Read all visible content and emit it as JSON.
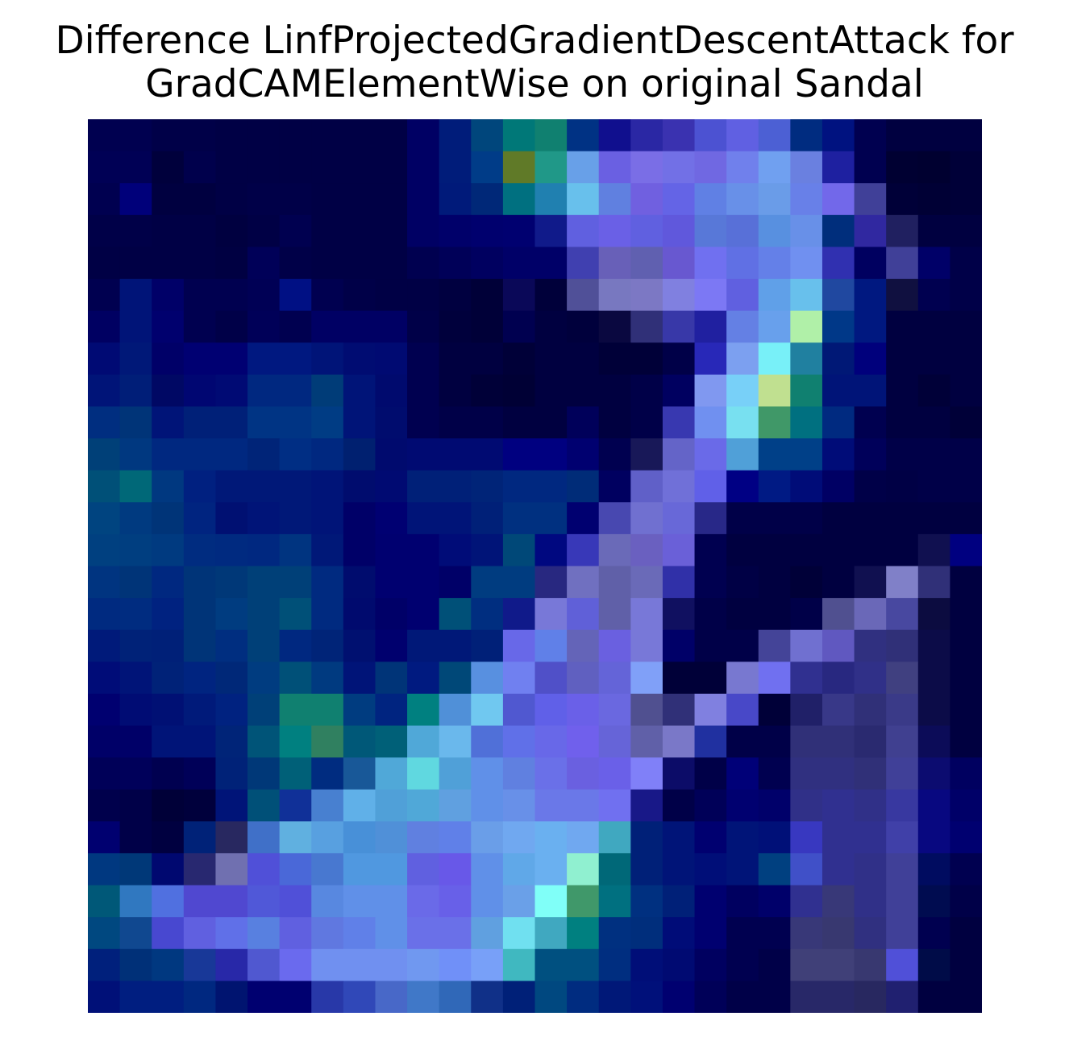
{
  "chart_data": {
    "type": "heatmap",
    "title_lines": [
      "Difference LinfProjectedGradientDescentAttack for",
      "GradCAMElementWise on original Sandal"
    ],
    "xlabel": "",
    "ylabel": "",
    "axes_visible": false,
    "grid": false,
    "rows": 28,
    "cols": 28,
    "cells": [
      [
        "#000050",
        "#000050",
        "#000048",
        "#000048",
        "#000045",
        "#000045",
        "#000045",
        "#000045",
        "#000045",
        "#000045",
        "#000064",
        "#001c7a",
        "#00467c",
        "#007878",
        "#108070",
        "#003284",
        "#100f8e",
        "#2a27a4",
        "#3a32b0",
        "#4c52d2",
        "#6060e2",
        "#4c60d4",
        "#002c80",
        "#001280",
        "#000050",
        "#000040",
        "#000040",
        "#000040"
      ],
      [
        "#000055",
        "#000055",
        "#00003c",
        "#00004c",
        "#000045",
        "#000045",
        "#000045",
        "#000045",
        "#000045",
        "#000045",
        "#000064",
        "#001c7a",
        "#003c88",
        "#607a28",
        "#209888",
        "#68a0e8",
        "#6a60e2",
        "#7a6ee6",
        "#7270e6",
        "#7068e2",
        "#7080ec",
        "#70a0f0",
        "#6a80e0",
        "#1e20a0",
        "#000050",
        "#000032",
        "#000030",
        "#000038"
      ],
      [
        "#000050",
        "#00007a",
        "#000040",
        "#000040",
        "#000045",
        "#000048",
        "#000048",
        "#000045",
        "#000045",
        "#000045",
        "#000064",
        "#001a7a",
        "#002878",
        "#007080",
        "#2080b0",
        "#68c0ec",
        "#6080e0",
        "#7060e0",
        "#6464e6",
        "#6080e4",
        "#6890e8",
        "#6a9ce8",
        "#6880e8",
        "#7268ea",
        "#404098",
        "#000038",
        "#000035",
        "#000038"
      ],
      [
        "#000048",
        "#000048",
        "#000045",
        "#000045",
        "#000040",
        "#000045",
        "#000050",
        "#000045",
        "#000045",
        "#000045",
        "#000064",
        "#00006a",
        "#00006e",
        "#000070",
        "#101a8a",
        "#6060e0",
        "#6a60e6",
        "#6060e0",
        "#6058dc",
        "#5878d8",
        "#5870d8",
        "#5890e0",
        "#6890e8",
        "#002e7c",
        "#3028a0",
        "#202060",
        "#000040",
        "#000040"
      ],
      [
        "#000045",
        "#000045",
        "#000045",
        "#000045",
        "#000042",
        "#000058",
        "#000048",
        "#000045",
        "#000045",
        "#000045",
        "#000050",
        "#000058",
        "#000060",
        "#000068",
        "#000068",
        "#4040b0",
        "#6860b8",
        "#6060b0",
        "#6858d0",
        "#7070f0",
        "#6070e4",
        "#6480e8",
        "#7090f0",
        "#3030b0",
        "#000060",
        "#404098",
        "#000068",
        "#000048"
      ],
      [
        "#000050",
        "#001478",
        "#000068",
        "#000050",
        "#000050",
        "#000055",
        "#001084",
        "#000050",
        "#000048",
        "#000045",
        "#000045",
        "#000040",
        "#000038",
        "#0a0858",
        "#00003a",
        "#505098",
        "#7878c0",
        "#7c78c4",
        "#8080e0",
        "#7c78f4",
        "#6060e0",
        "#60a0e8",
        "#68c0ec",
        "#2048a0",
        "#001880",
        "#101040",
        "#000050",
        "#000048"
      ],
      [
        "#000062",
        "#001478",
        "#00006e",
        "#000050",
        "#000048",
        "#000058",
        "#000050",
        "#000064",
        "#000064",
        "#000064",
        "#000048",
        "#00003c",
        "#000038",
        "#000050",
        "#000040",
        "#00003c",
        "#0a0840",
        "#303078",
        "#3838a8",
        "#2020a0",
        "#6480e4",
        "#68a0ec",
        "#b0f0a8",
        "#003888",
        "#001880",
        "#000040",
        "#000040",
        "#000040"
      ],
      [
        "#000a74",
        "#001878",
        "#000068",
        "#000072",
        "#000072",
        "#001880",
        "#001880",
        "#001478",
        "#000c72",
        "#000a72",
        "#000050",
        "#000040",
        "#000040",
        "#000038",
        "#000040",
        "#000040",
        "#000038",
        "#000038",
        "#000048",
        "#2828b8",
        "#7ca0f0",
        "#78f0f8",
        "#2080a0",
        "#001876",
        "#00007c",
        "#000040",
        "#000040",
        "#000040"
      ],
      [
        "#001478",
        "#001e78",
        "#000864",
        "#000672",
        "#000a74",
        "#002880",
        "#002880",
        "#003c78",
        "#001478",
        "#000a6e",
        "#000050",
        "#000040",
        "#000038",
        "#000035",
        "#000040",
        "#000040",
        "#000040",
        "#000048",
        "#000060",
        "#8098f0",
        "#78d0f8",
        "#c0e090",
        "#108070",
        "#001478",
        "#001478",
        "#000040",
        "#000038",
        "#000040"
      ],
      [
        "#002e80",
        "#003478",
        "#001478",
        "#002078",
        "#002078",
        "#003484",
        "#003484",
        "#003c84",
        "#001478",
        "#000c6e",
        "#000050",
        "#000048",
        "#000048",
        "#000040",
        "#000040",
        "#00005a",
        "#000040",
        "#000048",
        "#3838b0",
        "#7090f0",
        "#78e0f0",
        "#409868",
        "#007080",
        "#002a80",
        "#000050",
        "#000040",
        "#000040",
        "#000038"
      ],
      [
        "#004078",
        "#003880",
        "#002880",
        "#002880",
        "#002880",
        "#002478",
        "#002e84",
        "#002880",
        "#002070",
        "#000a6e",
        "#000a72",
        "#000a72",
        "#000a72",
        "#000080",
        "#000080",
        "#000070",
        "#000050",
        "#181858",
        "#6464c8",
        "#6a6ae8",
        "#50a0d8",
        "#004088",
        "#004088",
        "#000c78",
        "#00005a",
        "#000048",
        "#000048",
        "#000048"
      ],
      [
        "#005078",
        "#006878",
        "#003880",
        "#002080",
        "#001878",
        "#001878",
        "#001878",
        "#001478",
        "#000c6e",
        "#000a72",
        "#002078",
        "#002078",
        "#002478",
        "#002880",
        "#002880",
        "#002c78",
        "#000060",
        "#6060c8",
        "#7070d8",
        "#6060e8",
        "#000084",
        "#001a84",
        "#000c78",
        "#000064",
        "#000048",
        "#000045",
        "#000048",
        "#000048"
      ],
      [
        "#004480",
        "#003a80",
        "#003478",
        "#002480",
        "#001072",
        "#001478",
        "#001878",
        "#001478",
        "#000068",
        "#000072",
        "#001478",
        "#001478",
        "#002078",
        "#003080",
        "#003080",
        "#000070",
        "#4848b0",
        "#7070d0",
        "#6868d8",
        "#282888",
        "#000048",
        "#000048",
        "#000048",
        "#000040",
        "#000040",
        "#000040",
        "#000040",
        "#000040"
      ],
      [
        "#004080",
        "#003e80",
        "#003a80",
        "#002c80",
        "#002a80",
        "#002880",
        "#003480",
        "#001878",
        "#000068",
        "#000070",
        "#000070",
        "#000c78",
        "#001478",
        "#004878",
        "#000880",
        "#3838b8",
        "#6a6ab8",
        "#6a60c0",
        "#6a60d8",
        "#000050",
        "#000040",
        "#000040",
        "#000040",
        "#000040",
        "#000040",
        "#000040",
        "#101050",
        "#000080"
      ],
      [
        "#003480",
        "#003478",
        "#002880",
        "#003478",
        "#003878",
        "#004078",
        "#004078",
        "#002a80",
        "#000c6e",
        "#000070",
        "#000070",
        "#000068",
        "#003c80",
        "#003c80",
        "#282880",
        "#7070c0",
        "#6060a8",
        "#6a6ab8",
        "#3030a8",
        "#000050",
        "#000045",
        "#000040",
        "#000038",
        "#000040",
        "#101050",
        "#8080c8",
        "#303078",
        "#000040"
      ],
      [
        "#002a80",
        "#002c80",
        "#002280",
        "#003478",
        "#003c80",
        "#004078",
        "#005078",
        "#002a80",
        "#000a6e",
        "#000068",
        "#000070",
        "#005078",
        "#002e80",
        "#101a8a",
        "#7878d8",
        "#6060d8",
        "#6060a8",
        "#7878d8",
        "#101060",
        "#000048",
        "#000040",
        "#000040",
        "#000048",
        "#505090",
        "#6a68b8",
        "#4848a0",
        "#0c0c40",
        "#000040"
      ],
      [
        "#001a7a",
        "#002278",
        "#002078",
        "#003478",
        "#002e80",
        "#004078",
        "#002880",
        "#002478",
        "#001070",
        "#00006e",
        "#001878",
        "#001878",
        "#002078",
        "#6868e8",
        "#6080e8",
        "#6464b8",
        "#6a60e0",
        "#7878d8",
        "#000068",
        "#000048",
        "#000048",
        "#444498",
        "#7070d0",
        "#6058c0",
        "#303080",
        "#303078",
        "#0c0c48",
        "#000040"
      ],
      [
        "#000c78",
        "#001478",
        "#002278",
        "#002480",
        "#002878",
        "#003c80",
        "#005078",
        "#003a80",
        "#001478",
        "#003478",
        "#001a80",
        "#004878",
        "#5890e0",
        "#7080f0",
        "#5050c8",
        "#6060c0",
        "#6464d8",
        "#80a0f8",
        "#000038",
        "#000038",
        "#7878d0",
        "#7070f0",
        "#303090",
        "#282880",
        "#303088",
        "#404080",
        "#0c0c48",
        "#000040"
      ],
      [
        "#000070",
        "#000c74",
        "#001074",
        "#001a7a",
        "#002280",
        "#004078",
        "#108070",
        "#108070",
        "#003c80",
        "#002480",
        "#008080",
        "#5090d8",
        "#70c8f0",
        "#5058d0",
        "#6060e8",
        "#6a60e8",
        "#6a68e0",
        "#505090",
        "#303078",
        "#8080e0",
        "#4848c8",
        "#000038",
        "#202068",
        "#383888",
        "#303078",
        "#3a3a88",
        "#0c0c48",
        "#000040"
      ],
      [
        "#000068",
        "#000068",
        "#001478",
        "#001478",
        "#002478",
        "#005478",
        "#008080",
        "#308060",
        "#005878",
        "#006078",
        "#50a8d8",
        "#6ab8ec",
        "#5070d8",
        "#6070e8",
        "#6868e8",
        "#7060ec",
        "#6664d8",
        "#6060a8",
        "#7a78c8",
        "#2030a0",
        "#000048",
        "#000048",
        "#303078",
        "#303078",
        "#2a2a70",
        "#404090",
        "#0c0c58",
        "#000040"
      ],
      [
        "#000058",
        "#00005a",
        "#000050",
        "#000058",
        "#002278",
        "#003878",
        "#006078",
        "#002c80",
        "#185898",
        "#50a8d8",
        "#60d8e0",
        "#50a0d8",
        "#6090e8",
        "#6080e0",
        "#6a70e8",
        "#6a60e0",
        "#6a60e8",
        "#8080f8",
        "#0c0c68",
        "#000048",
        "#000078",
        "#000050",
        "#303080",
        "#303080",
        "#303078",
        "#404098",
        "#0c0c70",
        "#000060"
      ],
      [
        "#00004c",
        "#000048",
        "#000038",
        "#00003c",
        "#001478",
        "#005078",
        "#103098",
        "#4880d0",
        "#60b0e8",
        "#50a0d8",
        "#50a8d8",
        "#60a0e0",
        "#6090e8",
        "#6890e8",
        "#6a78e8",
        "#6a78e8",
        "#7070f0",
        "#181888",
        "#000048",
        "#000058",
        "#000070",
        "#00006a",
        "#303088",
        "#303090",
        "#303088",
        "#3838a0",
        "#080880",
        "#000068"
      ],
      [
        "#000070",
        "#000048",
        "#000040",
        "#002278",
        "#282860",
        "#4070c8",
        "#60b0e0",
        "#58a0e0",
        "#4890d8",
        "#5090d8",
        "#6080e0",
        "#6080e8",
        "#6a9ee8",
        "#70a8f0",
        "#6ab0f0",
        "#70a8f0",
        "#40a8c0",
        "#002078",
        "#001478",
        "#000070",
        "#001478",
        "#001078",
        "#3838c0",
        "#303090",
        "#303090",
        "#4040a8",
        "#080880",
        "#000070"
      ],
      [
        "#003880",
        "#003878",
        "#000870",
        "#282870",
        "#7070b0",
        "#5050d8",
        "#4a68d8",
        "#4878d0",
        "#5098e0",
        "#5098e0",
        "#6060e0",
        "#6858e8",
        "#6090e8",
        "#60a8e8",
        "#6ab0f0",
        "#90f0d0",
        "#006878",
        "#002078",
        "#001478",
        "#000e78",
        "#001478",
        "#004080",
        "#4050c8",
        "#303090",
        "#303088",
        "#404098",
        "#000c60",
        "#000050"
      ],
      [
        "#005878",
        "#3078c0",
        "#5070e0",
        "#5048d0",
        "#5048d0",
        "#5058d8",
        "#5050d8",
        "#5888e0",
        "#6090e8",
        "#6090e8",
        "#6a6ae8",
        "#6860e8",
        "#6090e8",
        "#6aa0e8",
        "#80fff8",
        "#40986a",
        "#007080",
        "#003080",
        "#002078",
        "#000070",
        "#000060",
        "#00006a",
        "#303090",
        "#383878",
        "#303088",
        "#404098",
        "#000c50",
        "#000048"
      ],
      [
        "#004880",
        "#104890",
        "#4848d0",
        "#6060e0",
        "#6070e8",
        "#5880e0",
        "#6060e0",
        "#6078e0",
        "#6080e8",
        "#6090e8",
        "#6a70e8",
        "#6a70e8",
        "#60a0e0",
        "#70e0f0",
        "#40a8c0",
        "#008080",
        "#003080",
        "#002e7c",
        "#000c78",
        "#000070",
        "#000050",
        "#000050",
        "#383878",
        "#383870",
        "#303080",
        "#404098",
        "#000050",
        "#000040"
      ],
      [
        "#00207c",
        "#003078",
        "#003880",
        "#183898",
        "#2828a8",
        "#5058d0",
        "#6a6aee",
        "#7090f0",
        "#7090f0",
        "#7090f0",
        "#7098f0",
        "#7090f8",
        "#78a0f8",
        "#40b8c0",
        "#005080",
        "#005080",
        "#002e80",
        "#000e78",
        "#000a72",
        "#000060",
        "#000050",
        "#000048",
        "#404078",
        "#404078",
        "#383870",
        "#5050d8",
        "#000c48",
        "#000040"
      ],
      [
        "#001078",
        "#001e80",
        "#001e80",
        "#002880",
        "#001470",
        "#000070",
        "#000070",
        "#2838a8",
        "#3048b8",
        "#4868c8",
        "#4078c8",
        "#3068b8",
        "#103088",
        "#002078",
        "#004880",
        "#002c80",
        "#001878",
        "#00107a",
        "#000070",
        "#000058",
        "#000048",
        "#000048",
        "#282868",
        "#282868",
        "#282860",
        "#202070",
        "#000040",
        "#000040"
      ]
    ]
  }
}
